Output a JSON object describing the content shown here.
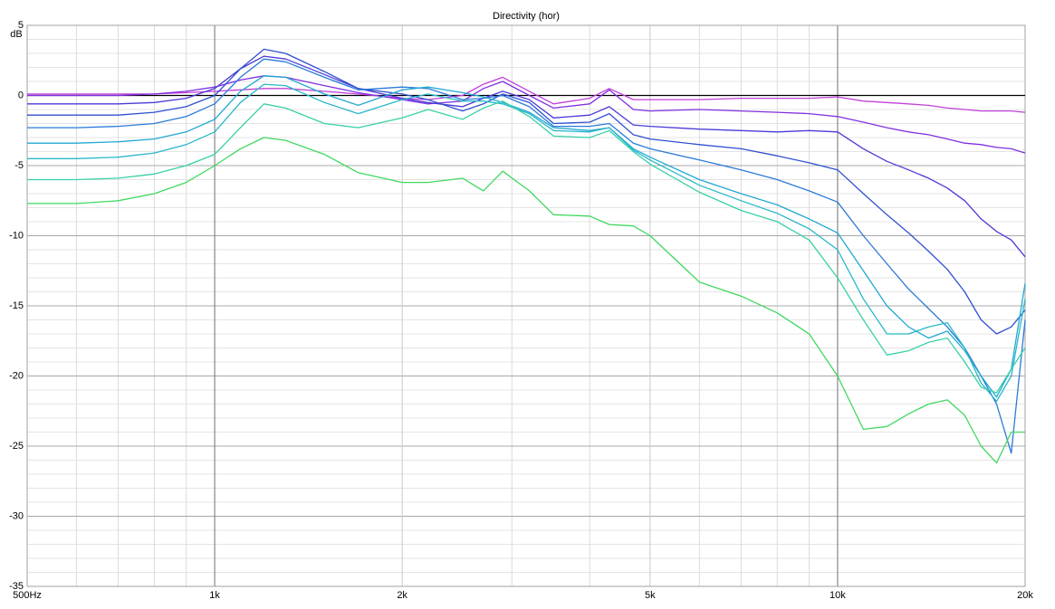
{
  "chart_data": {
    "type": "line",
    "title": "Directivity (hor)",
    "y_label": "dB",
    "log_x": true,
    "grid": true,
    "x": [
      500,
      600,
      700,
      800,
      900,
      1000,
      1100,
      1200,
      1300,
      1500,
      1700,
      2000,
      2200,
      2500,
      2700,
      2900,
      3200,
      3500,
      4000,
      4300,
      4700,
      5000,
      6000,
      7000,
      8000,
      9000,
      10000,
      11000,
      12000,
      13000,
      14000,
      15000,
      16000,
      17000,
      18000,
      19000,
      20000
    ],
    "xlim": [
      500,
      20000
    ],
    "xticks": [
      {
        "value": 500,
        "label": "500Hz"
      },
      {
        "value": 1000,
        "label": "1k"
      },
      {
        "value": 2000,
        "label": "2k"
      },
      {
        "value": 5000,
        "label": "5k"
      },
      {
        "value": 10000,
        "label": "10k"
      },
      {
        "value": 20000,
        "label": "20k"
      }
    ],
    "xminor": [
      600,
      700,
      800,
      900,
      3000,
      4000,
      6000,
      7000,
      8000,
      9000
    ],
    "ylim": [
      -35,
      5
    ],
    "yticks": [
      5,
      0,
      -5,
      -10,
      -15,
      -20,
      -25,
      -30,
      -35
    ],
    "yminor": [
      4,
      3,
      2,
      1,
      -1,
      -2,
      -3,
      -4,
      -6,
      -7,
      -8,
      -9,
      -11,
      -12,
      -13,
      -14,
      -16,
      -17,
      -18,
      -19,
      -21,
      -22,
      -23,
      -24,
      -26,
      -27,
      -28,
      -29,
      -31,
      -32,
      -33,
      -34
    ],
    "series": [
      {
        "color": "#000000",
        "values": [
          0,
          0,
          0,
          0,
          0,
          0,
          0,
          0,
          0,
          0,
          0,
          0,
          0,
          0,
          0,
          0,
          0,
          0,
          0,
          0,
          0,
          0,
          0,
          0,
          0,
          0,
          0,
          0,
          0,
          0,
          0,
          0,
          0,
          0,
          0,
          0,
          0
        ]
      },
      {
        "color": "#c040d8",
        "values": [
          0.1,
          0.1,
          0.1,
          0.1,
          0.2,
          0.3,
          0.4,
          0.5,
          0.5,
          0.3,
          0.1,
          -0.2,
          -0.3,
          0,
          0.8,
          1.3,
          0.3,
          -0.6,
          -0.2,
          0.5,
          -0.3,
          -0.3,
          -0.3,
          -0.2,
          -0.2,
          -0.2,
          -0.1,
          -0.4,
          -0.5,
          -0.6,
          -0.7,
          -0.9,
          -1.0,
          -1.1,
          -1.1,
          -1.1,
          -1.2
        ]
      },
      {
        "color": "#8030e0",
        "values": [
          0,
          0,
          0,
          0.1,
          0.3,
          0.6,
          1.1,
          1.4,
          1.3,
          0.7,
          0.2,
          -0.3,
          -0.6,
          -0.4,
          0.5,
          1.0,
          0,
          -0.9,
          -0.6,
          0.4,
          -1.0,
          -1.1,
          -1.0,
          -1.1,
          -1.2,
          -1.3,
          -1.5,
          -1.9,
          -2.3,
          -2.6,
          -2.8,
          -3.1,
          -3.4,
          -3.5,
          -3.7,
          -3.8,
          -4.1
        ]
      },
      {
        "color": "#4a3ad8",
        "values": [
          -0.6,
          -0.6,
          -0.6,
          -0.5,
          -0.2,
          0.5,
          1.9,
          2.8,
          2.6,
          1.5,
          0.5,
          -0.2,
          -0.5,
          -0.8,
          -0.2,
          0.3,
          -0.3,
          -1.6,
          -1.4,
          -0.8,
          -2.1,
          -2.2,
          -2.4,
          -2.5,
          -2.6,
          -2.5,
          -2.6,
          -3.8,
          -4.7,
          -5.3,
          -5.9,
          -6.6,
          -7.5,
          -8.8,
          -9.7,
          -10.3,
          -11.5
        ]
      },
      {
        "color": "#3050d0",
        "values": [
          -1.4,
          -1.4,
          -1.4,
          -1.2,
          -0.8,
          0,
          1.9,
          3.3,
          3.0,
          1.7,
          0.5,
          0.1,
          -0.3,
          -1.1,
          -0.6,
          0.1,
          -0.5,
          -2.0,
          -1.9,
          -1.3,
          -2.8,
          -3.1,
          -3.5,
          -3.8,
          -4.3,
          -4.8,
          -5.3,
          -7.0,
          -8.5,
          -9.8,
          -11.1,
          -12.4,
          -14.0,
          -16.0,
          -17.0,
          -16.5,
          -15.3
        ]
      },
      {
        "color": "#2a7ad8",
        "values": [
          -2.3,
          -2.3,
          -2.2,
          -2.0,
          -1.5,
          -0.6,
          1.3,
          2.6,
          2.4,
          1.3,
          0.4,
          0.6,
          0.5,
          -0.3,
          -0.2,
          0,
          -0.8,
          -2.2,
          -2.2,
          -2.0,
          -3.4,
          -3.8,
          -4.6,
          -5.3,
          -6.0,
          -6.8,
          -7.6,
          -10.0,
          -12.0,
          -13.8,
          -15.2,
          -16.5,
          -18.0,
          -20.0,
          -22.0,
          -25.5,
          -16.0
        ]
      },
      {
        "color": "#22a8d2",
        "values": [
          -3.4,
          -3.4,
          -3.3,
          -3.1,
          -2.6,
          -1.7,
          0.3,
          1.4,
          1.3,
          0.1,
          -0.7,
          0.4,
          0.6,
          0.2,
          -0.1,
          -0.5,
          -1.2,
          -2.3,
          -2.5,
          -2.3,
          -3.8,
          -4.4,
          -6.0,
          -7.0,
          -7.8,
          -8.8,
          -9.8,
          -12.5,
          -15.0,
          -16.5,
          -17.3,
          -16.8,
          -18.2,
          -20.0,
          -21.5,
          -19.5,
          -13.4
        ]
      },
      {
        "color": "#28b8c8",
        "values": [
          -4.5,
          -4.5,
          -4.4,
          -4.1,
          -3.5,
          -2.6,
          -0.5,
          0.8,
          0.7,
          -0.5,
          -1.3,
          -0.3,
          0.1,
          -0.4,
          -0.4,
          -0.6,
          -1.3,
          -2.5,
          -2.6,
          -2.3,
          -3.9,
          -4.6,
          -6.4,
          -7.5,
          -8.4,
          -9.5,
          -11.0,
          -14.5,
          -17.0,
          -17.0,
          -16.5,
          -16.2,
          -18.0,
          -20.5,
          -21.8,
          -20.0,
          -14.5
        ]
      },
      {
        "color": "#38d0a8",
        "values": [
          -6.0,
          -6.0,
          -5.9,
          -5.6,
          -5.0,
          -4.2,
          -2.3,
          -0.6,
          -0.9,
          -2.0,
          -2.3,
          -1.6,
          -1.0,
          -1.7,
          -0.9,
          -0.4,
          -1.5,
          -2.9,
          -3.0,
          -2.5,
          -4.0,
          -4.9,
          -6.9,
          -8.2,
          -9.0,
          -10.3,
          -13.0,
          -16.0,
          -18.5,
          -18.2,
          -17.6,
          -17.3,
          -19.0,
          -20.8,
          -21.2,
          -19.5,
          -18.0
        ]
      },
      {
        "color": "#40d860",
        "values": [
          -7.7,
          -7.7,
          -7.5,
          -7.0,
          -6.2,
          -5.0,
          -3.8,
          -3.0,
          -3.2,
          -4.2,
          -5.5,
          -6.2,
          -6.2,
          -5.9,
          -6.8,
          -5.4,
          -6.8,
          -8.5,
          -8.6,
          -9.2,
          -9.3,
          -10.0,
          -13.3,
          -14.3,
          -15.5,
          -17.0,
          -20.0,
          -23.8,
          -23.6,
          -22.7,
          -22.0,
          -21.7,
          -22.8,
          -25.0,
          -26.2,
          -24.0,
          -24.0
        ]
      }
    ]
  }
}
